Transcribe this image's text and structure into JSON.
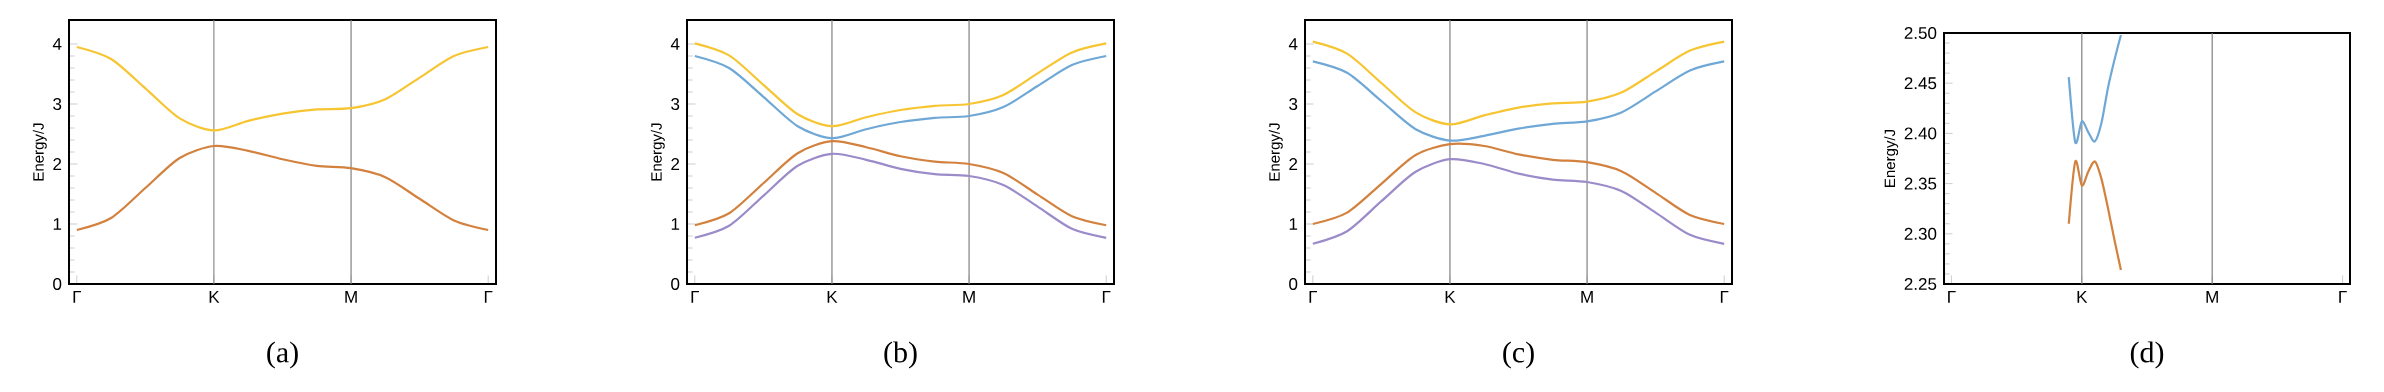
{
  "chart_data": [
    {
      "type": "line",
      "ylabel": "Energy/J",
      "annotations": [
        "(a)"
      ],
      "categories": [
        "Γ",
        null,
        null,
        null,
        "K",
        null,
        null,
        null,
        "M",
        null,
        null,
        null,
        "Γ"
      ],
      "ylim": [
        0,
        4.4
      ],
      "yticks": [
        0,
        1,
        2,
        3,
        4
      ],
      "ref_lines": [
        {
          "axis": "x",
          "value": "K",
          "color": "#808080"
        },
        {
          "axis": "x",
          "value": "M",
          "color": "#808080"
        }
      ],
      "series": [
        {
          "color": "#f6c531",
          "values": [
            3.95,
            3.75,
            3.26,
            2.76,
            2.56,
            2.72,
            2.84,
            2.91,
            2.93,
            3.08,
            3.44,
            3.8,
            3.95
          ]
        },
        {
          "color": "#d2813e",
          "values": [
            0.9,
            1.1,
            1.6,
            2.1,
            2.3,
            2.22,
            2.08,
            1.97,
            1.93,
            1.78,
            1.42,
            1.06,
            0.9
          ]
        }
      ]
    },
    {
      "type": "line",
      "ylabel": "Energy/J",
      "annotations": [
        "(b)"
      ],
      "categories": [
        "Γ",
        null,
        null,
        null,
        "K",
        null,
        null,
        null,
        "M",
        null,
        null,
        null,
        "Γ"
      ],
      "ylim": [
        0,
        4.4
      ],
      "yticks": [
        0,
        1,
        2,
        3,
        4
      ],
      "ref_lines": [
        {
          "axis": "x",
          "value": "K",
          "color": "#808080"
        },
        {
          "axis": "x",
          "value": "M",
          "color": "#808080"
        }
      ],
      "series": [
        {
          "color": "#f6c531",
          "values": [
            4.01,
            3.81,
            3.32,
            2.83,
            2.63,
            2.78,
            2.9,
            2.97,
            3.0,
            3.15,
            3.51,
            3.86,
            4.01
          ]
        },
        {
          "color": "#6fa8d6",
          "values": [
            3.8,
            3.6,
            3.12,
            2.63,
            2.43,
            2.58,
            2.7,
            2.77,
            2.8,
            2.95,
            3.3,
            3.65,
            3.8
          ]
        },
        {
          "color": "#d2813e",
          "values": [
            0.98,
            1.18,
            1.68,
            2.18,
            2.38,
            2.28,
            2.13,
            2.04,
            2.0,
            1.85,
            1.49,
            1.13,
            0.98
          ]
        },
        {
          "color": "#9b8bc9",
          "values": [
            0.77,
            0.97,
            1.47,
            1.97,
            2.17,
            2.07,
            1.92,
            1.83,
            1.8,
            1.65,
            1.29,
            0.92,
            0.77
          ]
        }
      ]
    },
    {
      "type": "line",
      "ylabel": "Energy/J",
      "annotations": [
        "(c)"
      ],
      "categories": [
        "Γ",
        null,
        null,
        null,
        "K",
        null,
        null,
        null,
        "M",
        null,
        null,
        null,
        "Γ"
      ],
      "ylim": [
        0,
        4.4
      ],
      "yticks": [
        0,
        1,
        2,
        3,
        4
      ],
      "ref_lines": [
        {
          "axis": "x",
          "value": "K",
          "color": "#808080"
        },
        {
          "axis": "x",
          "value": "M",
          "color": "#808080"
        }
      ],
      "series": [
        {
          "color": "#f6c531",
          "values": [
            4.04,
            3.84,
            3.35,
            2.86,
            2.66,
            2.81,
            2.94,
            3.01,
            3.04,
            3.19,
            3.54,
            3.89,
            4.04
          ]
        },
        {
          "color": "#6fa8d6",
          "values": [
            3.71,
            3.52,
            3.05,
            2.58,
            2.39,
            2.47,
            2.59,
            2.67,
            2.71,
            2.86,
            3.21,
            3.56,
            3.71
          ]
        },
        {
          "color": "#d2813e",
          "values": [
            1.0,
            1.19,
            1.67,
            2.15,
            2.33,
            2.3,
            2.16,
            2.07,
            2.03,
            1.88,
            1.52,
            1.15,
            1.0
          ]
        },
        {
          "color": "#9b8bc9",
          "values": [
            0.67,
            0.88,
            1.38,
            1.87,
            2.08,
            2.0,
            1.84,
            1.74,
            1.7,
            1.55,
            1.19,
            0.82,
            0.67
          ]
        }
      ]
    },
    {
      "type": "line",
      "ylabel": "Energy/J",
      "annotations": [
        "(d)"
      ],
      "categories": [
        "Γ",
        null,
        null,
        null,
        null,
        null,
        null,
        null,
        null,
        null,
        null,
        null,
        null,
        null,
        null,
        null,
        null,
        null,
        null,
        null,
        "K",
        null,
        null,
        null,
        null,
        null,
        null,
        null,
        null,
        null,
        null,
        null,
        null,
        null,
        null,
        null,
        null,
        null,
        null,
        null,
        "M",
        null,
        null,
        null,
        null,
        null,
        null,
        null,
        null,
        null,
        null,
        null,
        null,
        null,
        null,
        null,
        null,
        null,
        null,
        null,
        "Γ"
      ],
      "ylim": [
        2.25,
        2.5
      ],
      "yticks": [
        {
          "value": 2.25,
          "label": "2.25"
        },
        {
          "value": 2.3,
          "label": "2.30"
        },
        {
          "value": 2.35,
          "label": "2.35"
        },
        {
          "value": 2.4,
          "label": "2.40"
        },
        {
          "value": 2.45,
          "label": "2.45"
        },
        {
          "value": 2.5,
          "label": "2.50"
        }
      ],
      "ref_lines": [
        {
          "axis": "x",
          "value": "K",
          "color": "#808080"
        },
        {
          "axis": "x",
          "value": "M",
          "color": "#808080"
        }
      ],
      "series": [
        {
          "color": "#6fa8d6",
          "values": [
            null,
            null,
            null,
            null,
            null,
            null,
            null,
            null,
            null,
            null,
            null,
            null,
            null,
            null,
            null,
            null,
            null,
            null,
            2.456,
            2.391,
            2.412,
            2.401,
            2.392,
            2.41,
            2.445,
            2.473,
            2.498,
            null,
            null,
            null,
            null,
            null,
            null,
            null,
            null,
            null,
            null,
            null,
            null,
            null,
            null,
            null,
            null,
            null,
            null,
            null,
            null,
            null,
            null,
            null,
            null,
            null,
            null,
            null,
            null,
            null,
            null,
            null,
            null,
            null,
            null
          ]
        },
        {
          "color": "#d2813e",
          "values": [
            null,
            null,
            null,
            null,
            null,
            null,
            null,
            null,
            null,
            null,
            null,
            null,
            null,
            null,
            null,
            null,
            null,
            null,
            2.31,
            2.372,
            2.348,
            2.362,
            2.372,
            2.355,
            2.326,
            2.294,
            2.264,
            null,
            null,
            null,
            null,
            null,
            null,
            null,
            null,
            null,
            null,
            null,
            null,
            null,
            null,
            null,
            null,
            null,
            null,
            null,
            null,
            null,
            null,
            null,
            null,
            null,
            null,
            null,
            null,
            null,
            null,
            null,
            null,
            null,
            null
          ]
        }
      ]
    }
  ]
}
